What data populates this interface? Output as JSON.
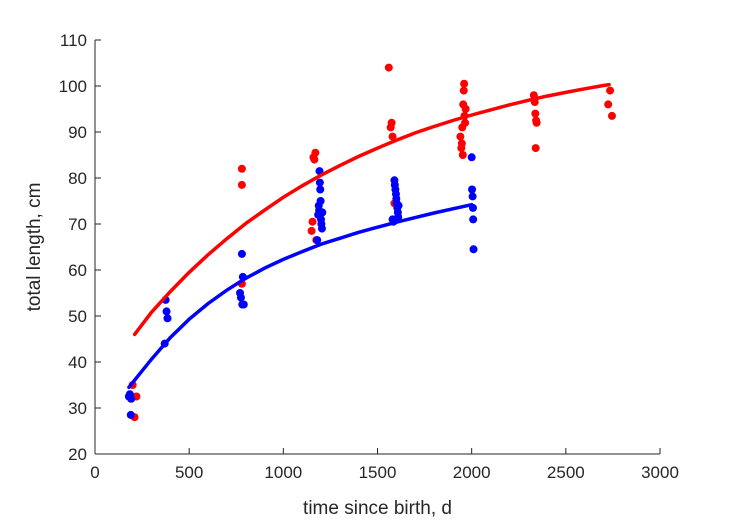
{
  "chart_data": {
    "type": "scatter",
    "xlabel": "time since birth, d",
    "ylabel": "total length, cm",
    "xlim": [
      0,
      3000
    ],
    "ylim": [
      20,
      110
    ],
    "xticks": [
      0,
      500,
      1000,
      1500,
      2000,
      2500,
      3000
    ],
    "yticks": [
      20,
      30,
      40,
      50,
      60,
      70,
      80,
      90,
      100,
      110
    ],
    "grid": false,
    "series": [
      {
        "color": "#ff0000",
        "points": [
          [
            195,
            32.5
          ],
          [
            200,
            35
          ],
          [
            210,
            28
          ],
          [
            220,
            32.5
          ],
          [
            780,
            57
          ],
          [
            780,
            78.5
          ],
          [
            780,
            82
          ],
          [
            1150,
            68.5
          ],
          [
            1155,
            70.5
          ],
          [
            1160,
            84.5
          ],
          [
            1165,
            84
          ],
          [
            1170,
            85.5
          ],
          [
            1175,
            66.5
          ],
          [
            1560,
            104
          ],
          [
            1570,
            91
          ],
          [
            1575,
            92
          ],
          [
            1580,
            89
          ],
          [
            1590,
            74.5
          ],
          [
            1940,
            89
          ],
          [
            1945,
            86.5
          ],
          [
            1948,
            87.5
          ],
          [
            1950,
            91
          ],
          [
            1953,
            85
          ],
          [
            1955,
            96
          ],
          [
            1958,
            99
          ],
          [
            1960,
            100.5
          ],
          [
            1962,
            93.5
          ],
          [
            1965,
            92
          ],
          [
            1968,
            95
          ],
          [
            2330,
            98
          ],
          [
            2335,
            96.5
          ],
          [
            2338,
            94
          ],
          [
            2340,
            86.5
          ],
          [
            2342,
            92.5
          ],
          [
            2345,
            92
          ],
          [
            2725,
            96
          ],
          [
            2735,
            99
          ],
          [
            2745,
            93.5
          ]
        ],
        "fit": [
          [
            210,
            46
          ],
          [
            300,
            50.8
          ],
          [
            400,
            55.3
          ],
          [
            500,
            59.5
          ],
          [
            600,
            63.3
          ],
          [
            700,
            66.8
          ],
          [
            800,
            70.1
          ],
          [
            900,
            73
          ],
          [
            1000,
            75.8
          ],
          [
            1100,
            78.3
          ],
          [
            1200,
            80.6
          ],
          [
            1300,
            82.7
          ],
          [
            1400,
            84.7
          ],
          [
            1500,
            86.5
          ],
          [
            1600,
            88.2
          ],
          [
            1700,
            89.8
          ],
          [
            1800,
            91.2
          ],
          [
            1900,
            92.5
          ],
          [
            2000,
            93.7
          ],
          [
            2100,
            94.8
          ],
          [
            2200,
            95.9
          ],
          [
            2300,
            96.9
          ],
          [
            2400,
            97.8
          ],
          [
            2500,
            98.6
          ],
          [
            2600,
            99.4
          ],
          [
            2700,
            100.1
          ],
          [
            2730,
            100.3
          ]
        ]
      },
      {
        "color": "#0000ff",
        "points": [
          [
            180,
            32.5
          ],
          [
            185,
            33
          ],
          [
            190,
            28.5
          ],
          [
            192,
            32
          ],
          [
            370,
            44
          ],
          [
            375,
            53.5
          ],
          [
            380,
            51
          ],
          [
            385,
            49.5
          ],
          [
            770,
            55
          ],
          [
            775,
            54
          ],
          [
            780,
            63.5
          ],
          [
            782,
            52.5
          ],
          [
            785,
            58.5
          ],
          [
            790,
            52.5
          ],
          [
            1180,
            66.5
          ],
          [
            1185,
            72
          ],
          [
            1188,
            74
          ],
          [
            1190,
            73
          ],
          [
            1192,
            81.5
          ],
          [
            1194,
            79
          ],
          [
            1196,
            77.5
          ],
          [
            1198,
            75
          ],
          [
            1200,
            71
          ],
          [
            1202,
            70
          ],
          [
            1205,
            69
          ],
          [
            1207,
            72.5
          ],
          [
            1580,
            71
          ],
          [
            1585,
            70.5
          ],
          [
            1590,
            79.5
          ],
          [
            1592,
            78.5
          ],
          [
            1595,
            77.5
          ],
          [
            1598,
            76.5
          ],
          [
            1600,
            75.5
          ],
          [
            1602,
            74.5
          ],
          [
            1605,
            73.5
          ],
          [
            1608,
            72.5
          ],
          [
            1610,
            71.5
          ],
          [
            1612,
            74
          ],
          [
            2000,
            84.5
          ],
          [
            2002,
            77.5
          ],
          [
            2005,
            76
          ],
          [
            2007,
            73.5
          ],
          [
            2008,
            71
          ],
          [
            2010,
            64.5
          ]
        ],
        "fit": [
          [
            180,
            34.5
          ],
          [
            300,
            40.6
          ],
          [
            400,
            45.3
          ],
          [
            500,
            49.3
          ],
          [
            600,
            52.7
          ],
          [
            700,
            55.6
          ],
          [
            800,
            58.2
          ],
          [
            900,
            60.4
          ],
          [
            1000,
            62.3
          ],
          [
            1100,
            64
          ],
          [
            1200,
            65.6
          ],
          [
            1300,
            66.9
          ],
          [
            1400,
            68.2
          ],
          [
            1500,
            69.3
          ],
          [
            1600,
            70.4
          ],
          [
            1700,
            71.4
          ],
          [
            1800,
            72.4
          ],
          [
            1900,
            73.3
          ],
          [
            2000,
            74.2
          ]
        ]
      }
    ]
  }
}
